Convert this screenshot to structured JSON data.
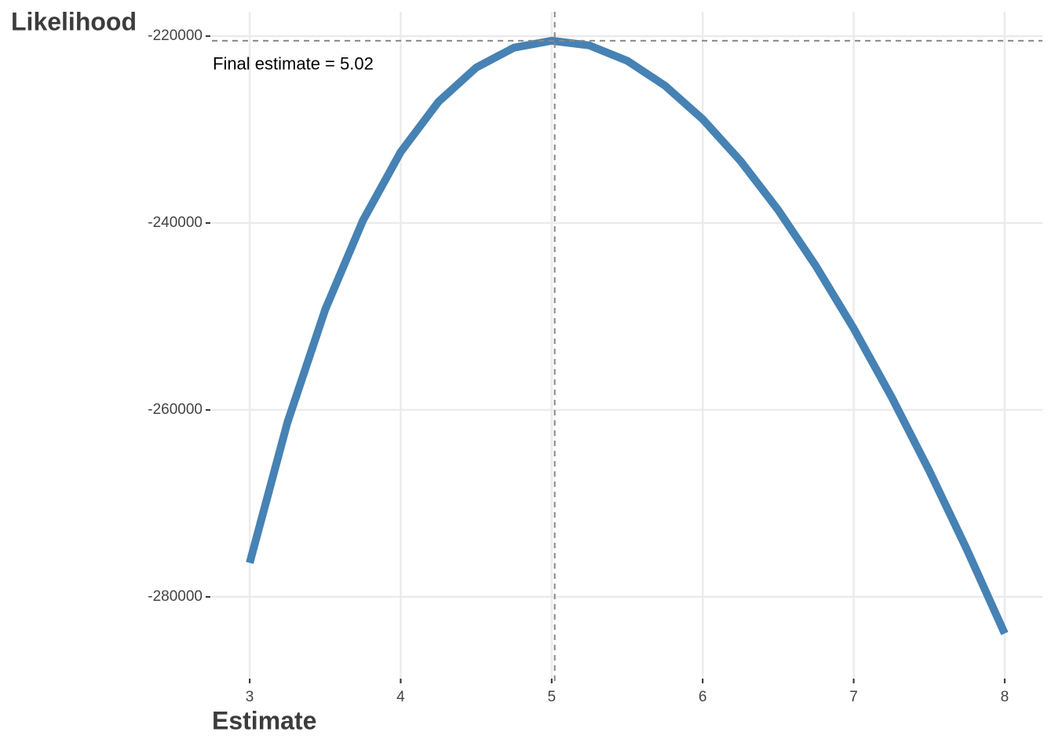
{
  "chart_data": {
    "type": "line",
    "x_label": "Estimate",
    "y_label": "Likelihood",
    "x": [
      3,
      3.25,
      3.5,
      3.75,
      4,
      4.25,
      4.5,
      4.75,
      5,
      5.25,
      5.5,
      5.75,
      6,
      6.25,
      6.5,
      6.75,
      7,
      7.25,
      7.5,
      7.75,
      8
    ],
    "values": [
      -276370,
      -261340,
      -249270,
      -239730,
      -232400,
      -227030,
      -223370,
      -221240,
      -220500,
      -221000,
      -222640,
      -225300,
      -228890,
      -233350,
      -238610,
      -244610,
      -251280,
      -258590,
      -266490,
      -274950,
      -283920
    ],
    "color": "#4682b4",
    "xlim": [
      2.75,
      8.25
    ],
    "xticks": [
      3,
      4,
      5,
      6,
      7,
      8
    ],
    "ylim": [
      -289250,
      -217400
    ],
    "yticks": [
      -280000,
      -260000,
      -240000,
      -220000
    ],
    "grid": true,
    "vline": 5.02,
    "hline": -220500,
    "annotation": "Final estimate = 5.02"
  }
}
